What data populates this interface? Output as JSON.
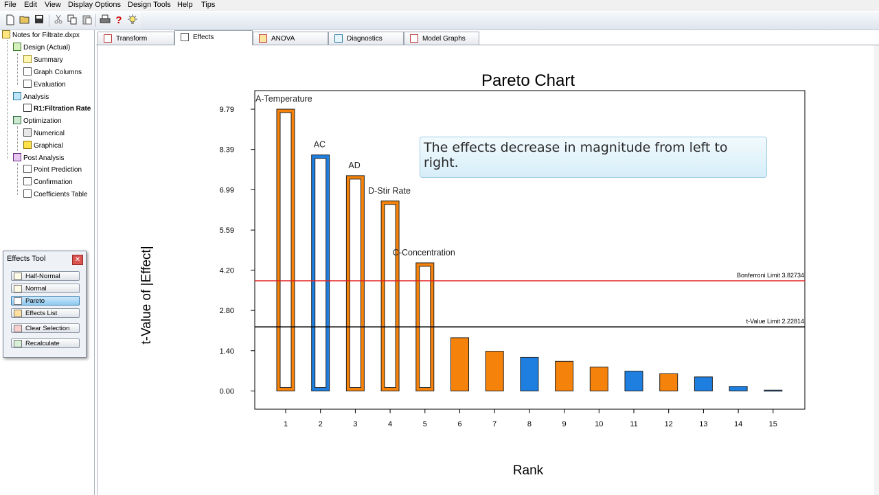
{
  "menu": [
    "File",
    "Edit",
    "View",
    "Display Options",
    "Design Tools",
    "Help",
    "Tips"
  ],
  "toolbar": {
    "icons": [
      "new-file-icon",
      "open-folder-icon",
      "save-icon",
      "cut-icon",
      "copy-icon",
      "paste-icon",
      "print-icon",
      "help-icon",
      "lightbulb-icon"
    ],
    "help_glyph": "?"
  },
  "tree": {
    "root": "Notes for Filtrate.dxpx",
    "design": "Design (Actual)",
    "summary": "Summary",
    "graph_columns": "Graph Columns",
    "evaluation": "Evaluation",
    "analysis": "Analysis",
    "r1": "R1:Filtration Rate",
    "optimization": "Optimization",
    "numerical": "Numerical",
    "graphical": "Graphical",
    "post_analysis": "Post Analysis",
    "point_prediction": "Point Prediction",
    "confirmation": "Confirmation",
    "coefficients_table": "Coefficients Table"
  },
  "effects_tool": {
    "title": "Effects Tool",
    "close": "✕",
    "buttons": [
      "Half-Normal",
      "Normal",
      "Pareto",
      "Effects List",
      "Clear Selection",
      "Recalculate"
    ],
    "active": "Pareto"
  },
  "tabs": [
    "Transform",
    "Effects",
    "ANOVA",
    "Diagnostics",
    "Model Graphs"
  ],
  "active_tab": "Effects",
  "tooltip": "The effects decrease in magnitude from left to right.",
  "colors": {
    "positive": "#f5820a",
    "negative": "#1e7fe0",
    "bonferroni": "#e32020",
    "tvalue": "#000000"
  },
  "chart_data": {
    "type": "bar",
    "title": "Pareto Chart",
    "xlabel": "Rank",
    "ylabel": "t-Value of |Effect|",
    "ylim": [
      0,
      10.3
    ],
    "yticks": [
      "0.00",
      "1.40",
      "2.80",
      "4.20",
      "5.59",
      "6.99",
      "8.39",
      "9.79"
    ],
    "ytick_values": [
      0.0,
      1.4,
      2.8,
      4.2,
      5.59,
      6.99,
      8.39,
      9.79
    ],
    "categories": [
      "1",
      "2",
      "3",
      "4",
      "5",
      "6",
      "7",
      "8",
      "9",
      "10",
      "11",
      "12",
      "13",
      "14",
      "15"
    ],
    "values": [
      9.79,
      8.2,
      7.48,
      6.6,
      4.45,
      1.85,
      1.38,
      1.17,
      1.03,
      0.83,
      0.69,
      0.6,
      0.49,
      0.16,
      0.03
    ],
    "signs": [
      "positive",
      "negative",
      "positive",
      "positive",
      "positive",
      "positive",
      "positive",
      "negative",
      "positive",
      "positive",
      "negative",
      "positive",
      "negative",
      "negative",
      "negative"
    ],
    "selected": [
      true,
      true,
      true,
      true,
      true,
      false,
      false,
      false,
      false,
      false,
      false,
      false,
      false,
      false,
      false
    ],
    "bar_labels": [
      "A-Temperature",
      "AC",
      "AD",
      "D-Stir Rate",
      "C-Concentration",
      "",
      "",
      "",
      "",
      "",
      "",
      "",
      "",
      "",
      ""
    ],
    "reference_lines": [
      {
        "label": "Bonferroni Limit 3.82734",
        "value": 3.82734,
        "color": "#e32020"
      },
      {
        "label": "t-Value Limit 2.22814",
        "value": 2.22814,
        "color": "#000000"
      }
    ],
    "grid": false
  }
}
